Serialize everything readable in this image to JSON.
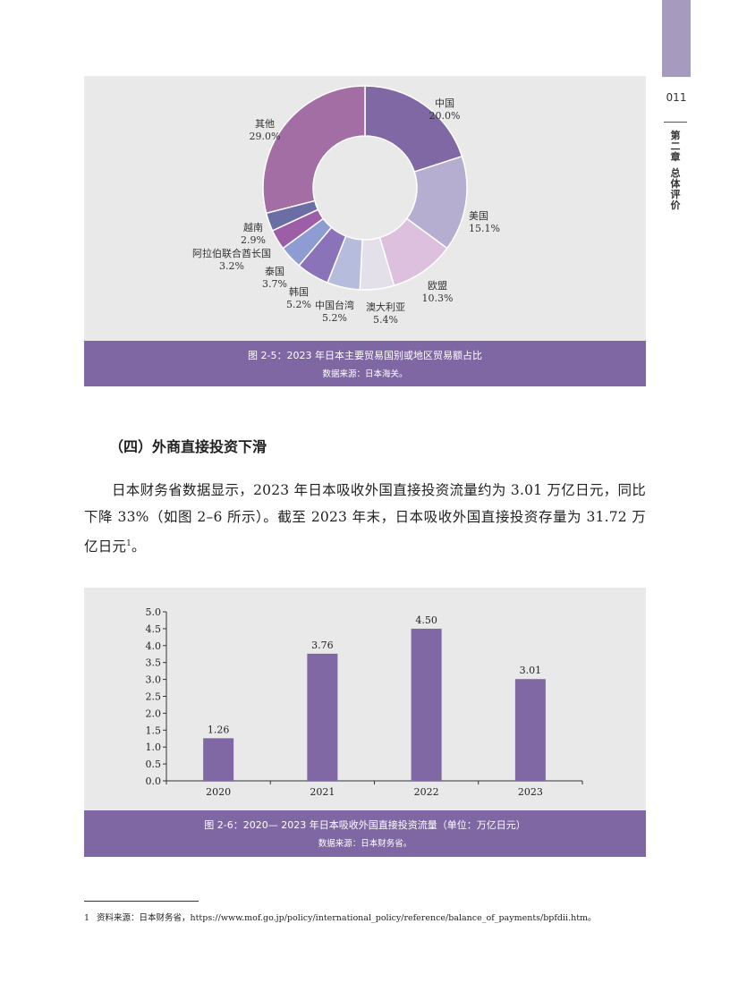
{
  "side": {
    "page_number": "011",
    "chapter_part1": "第二章",
    "chapter_part2": "总体评价"
  },
  "figure1": {
    "title": "图 2-5：2023 年日本主要贸易国别或地区贸易额占比",
    "source": "数据来源：日本海关。",
    "chart_data": {
      "type": "pie",
      "title": "",
      "slices": [
        {
          "label": "中国",
          "value_label": "20.0%",
          "value": 20.0,
          "color": "#7f68a3"
        },
        {
          "label": "美国",
          "value_label": "15.1%",
          "value": 15.1,
          "color": "#b6aed1"
        },
        {
          "label": "欧盟",
          "value_label": "10.3%",
          "value": 10.3,
          "color": "#dcc0dd"
        },
        {
          "label": "澳大利亚",
          "value_label": "5.4%",
          "value": 5.4,
          "color": "#e4e0ea"
        },
        {
          "label": "中国台湾",
          "value_label": "5.2%",
          "value": 5.2,
          "color": "#b6bcdc"
        },
        {
          "label": "韩国",
          "value_label": "5.2%",
          "value": 5.2,
          "color": "#8a73b8"
        },
        {
          "label": "泰国",
          "value_label": "3.7%",
          "value": 3.7,
          "color": "#8d9dd4"
        },
        {
          "label": "阿拉伯联合酋长国",
          "value_label": "3.2%",
          "value": 3.2,
          "color": "#9d5ea8"
        },
        {
          "label": "越南",
          "value_label": "2.9%",
          "value": 2.9,
          "color": "#6a6ea5"
        },
        {
          "label": "其他",
          "value_label": "29.0%",
          "value": 29.0,
          "color": "#a36ea4"
        }
      ]
    }
  },
  "section": {
    "heading": "（四）外商直接投资下滑",
    "paragraph": "日本财务省数据显示，2023 年日本吸收外国直接投资流量约为 3.01 万亿日元，同比下降 33%（如图 2–6 所示）。截至 2023 年末，日本吸收外国直接投资存量为 31.72 万亿日元",
    "paragraph_sup": "1",
    "paragraph_end": "。"
  },
  "figure2": {
    "title": "图 2-6：2020— 2023 年日本吸收外国直接投资流量（单位：万亿日元）",
    "source": "数据来源：日本财务省。",
    "chart_data": {
      "type": "bar",
      "title": "",
      "categories": [
        "2020",
        "2021",
        "2022",
        "2023"
      ],
      "values": [
        1.26,
        3.76,
        4.5,
        3.01
      ],
      "value_labels": [
        "1.26",
        "3.76",
        "4.50",
        "3.01"
      ],
      "ylim": [
        0,
        5.0
      ],
      "yticks": [
        "0.0",
        "0.5",
        "1.0",
        "1.5",
        "2.0",
        "2.5",
        "3.0",
        "3.5",
        "4.0",
        "4.5",
        "5.0"
      ],
      "bar_color": "#7f68a3",
      "xlabel": "",
      "ylabel": ""
    }
  },
  "footnote": {
    "number": "1",
    "text": "资料来源：日本财务省，https://www.mof.go.jp/policy/international_policy/reference/balance_of_payments/bpfdii.htm。"
  }
}
